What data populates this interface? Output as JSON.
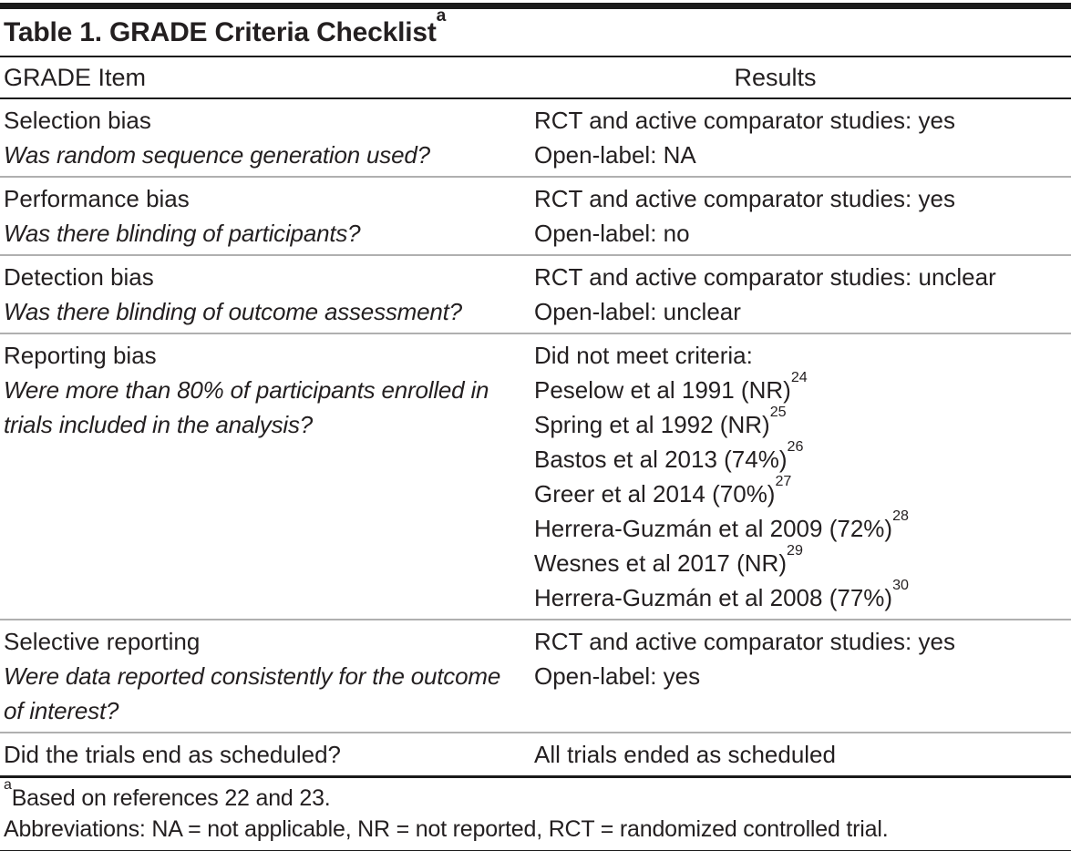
{
  "colors": {
    "text": "#231f20",
    "rule_dark": "#1a1a1a",
    "rule_light": "#b0b0b0",
    "background": "#ffffff"
  },
  "table": {
    "title": "Table 1. GRADE Criteria Checklist",
    "title_superscript": "a",
    "columns": [
      "GRADE Item",
      "Results"
    ],
    "rows": [
      {
        "item": "Selection bias",
        "question": "Was random sequence generation used?",
        "results": [
          {
            "text": "RCT and active comparator studies: yes",
            "ref": ""
          },
          {
            "text": "Open-label: NA",
            "ref": ""
          }
        ]
      },
      {
        "item": "Performance bias",
        "question": "Was there blinding of participants?",
        "results": [
          {
            "text": "RCT and active comparator studies: yes",
            "ref": ""
          },
          {
            "text": "Open-label: no",
            "ref": ""
          }
        ]
      },
      {
        "item": "Detection bias",
        "question": "Was there blinding of outcome assessment?",
        "results": [
          {
            "text": "RCT and active comparator studies: unclear",
            "ref": ""
          },
          {
            "text": "Open-label: unclear",
            "ref": ""
          }
        ]
      },
      {
        "item": "Reporting bias",
        "question": "Were more than 80% of participants enrolled in trials included in the analysis?",
        "results": [
          {
            "text": "Did not meet criteria:",
            "ref": ""
          },
          {
            "text": "Peselow et al 1991 (NR)",
            "ref": "24"
          },
          {
            "text": "Spring et al 1992 (NR)",
            "ref": "25"
          },
          {
            "text": "Bastos et al 2013 (74%)",
            "ref": "26"
          },
          {
            "text": "Greer et al 2014 (70%)",
            "ref": "27"
          },
          {
            "text": "Herrera-Guzmán et al 2009 (72%)",
            "ref": "28"
          },
          {
            "text": "Wesnes et al 2017 (NR)",
            "ref": "29"
          },
          {
            "text": "Herrera-Guzmán et al 2008 (77%)",
            "ref": "30"
          }
        ]
      },
      {
        "item": "Selective reporting",
        "question": "Were data reported consistently for the outcome of interest?",
        "results": [
          {
            "text": "RCT and active comparator studies: yes",
            "ref": ""
          },
          {
            "text": "Open-label: yes",
            "ref": ""
          }
        ]
      },
      {
        "item": "Did the trials end as scheduled?",
        "question": "",
        "results": [
          {
            "text": "All trials ended as scheduled",
            "ref": ""
          }
        ]
      }
    ],
    "footnotes": [
      {
        "marker": "a",
        "text": "Based on references 22 and 23."
      },
      {
        "marker": "",
        "text": "Abbreviations: NA = not applicable, NR = not reported, RCT = randomized controlled trial."
      }
    ]
  }
}
